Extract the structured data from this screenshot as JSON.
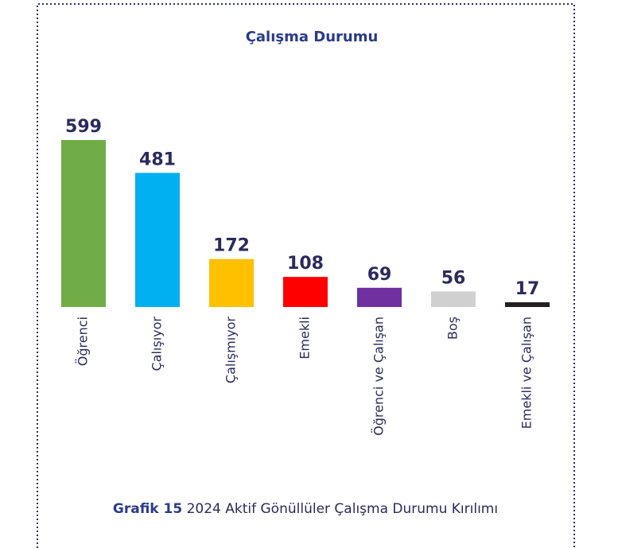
{
  "chart_data": {
    "type": "bar",
    "title": "Çalışma Durumu",
    "categories": [
      "Öğrenci",
      "Çalışıyor",
      "Çalışmıyor",
      "Emekli",
      "Öğrenci ve Çalışan",
      "Boş",
      "Emekli ve Çalışan"
    ],
    "values": [
      599,
      481,
      172,
      108,
      69,
      56,
      17
    ],
    "colors": [
      "#70ad47",
      "#00b0f0",
      "#ffc000",
      "#ff0000",
      "#7030a0",
      "#d0d0d0",
      "#231f20"
    ],
    "caption": {
      "label": "Grafik 15",
      "text": "2024 Aktif Gönüllüler Çalışma Durumu Kırılımı"
    }
  }
}
